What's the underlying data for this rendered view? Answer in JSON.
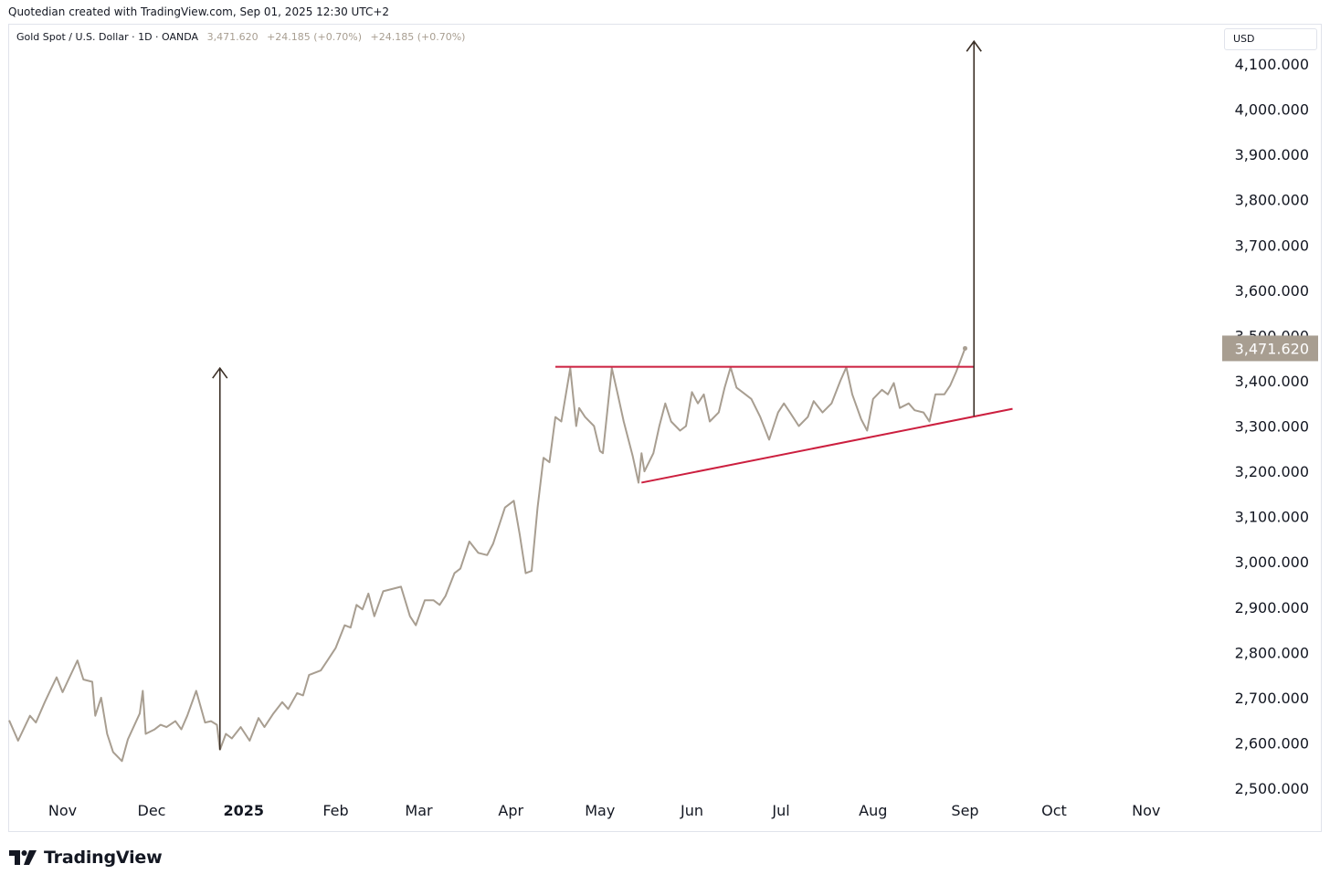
{
  "header": {
    "caption": "Quotedian created with TradingView.com, Sep 01, 2025 12:30 UTC+2"
  },
  "legend": {
    "symbol": "Gold Spot / U.S. Dollar · 1D · OANDA",
    "last": "3,471.620",
    "change": "+24.185 (+0.70%)",
    "change_repeat": "+24.185 (+0.70%)"
  },
  "price_axis": {
    "currency": "USD"
  },
  "footer": {
    "brand": "TradingView"
  },
  "colors": {
    "line": "#a89e91",
    "pattern": "#cc1f3f",
    "arrow": "#3b2f26",
    "badge": "#a89e91"
  },
  "chart_data": {
    "type": "line",
    "title": "Gold Spot / U.S. Dollar · 1D · OANDA",
    "ylabel": "USD",
    "ylim": [
      2500,
      4150
    ],
    "y_ticks": [
      2500,
      2600,
      2700,
      2800,
      2900,
      3000,
      3100,
      3200,
      3300,
      3400,
      3500,
      3600,
      3700,
      3800,
      3900,
      4000,
      4100
    ],
    "y_tick_labels": [
      "2,500.000",
      "2,600.000",
      "2,700.000",
      "2,800.000",
      "2,900.000",
      "3,000.000",
      "3,100.000",
      "3,200.000",
      "3,300.000",
      "3,400.000",
      "3,500.000",
      "3,600.000",
      "3,700.000",
      "3,800.000",
      "3,900.000",
      "4,000.000",
      "4,100.000"
    ],
    "x_range": [
      "2024-10-14",
      "2025-11-26"
    ],
    "x_ticks": [
      {
        "date": "2024-11-01",
        "label": "Nov"
      },
      {
        "date": "2024-12-01",
        "label": "Dec"
      },
      {
        "date": "2025-01-01",
        "label": "2025"
      },
      {
        "date": "2025-02-01",
        "label": "Feb"
      },
      {
        "date": "2025-03-01",
        "label": "Mar"
      },
      {
        "date": "2025-04-01",
        "label": "Apr"
      },
      {
        "date": "2025-05-01",
        "label": "May"
      },
      {
        "date": "2025-06-01",
        "label": "Jun"
      },
      {
        "date": "2025-07-01",
        "label": "Jul"
      },
      {
        "date": "2025-08-01",
        "label": "Aug"
      },
      {
        "date": "2025-09-01",
        "label": "Sep"
      },
      {
        "date": "2025-10-01",
        "label": "Oct"
      },
      {
        "date": "2025-11-01",
        "label": "Nov"
      }
    ],
    "last_price": 3471.62,
    "last_price_label": "3,471.620",
    "series": [
      {
        "name": "Gold Spot / U.S. Dollar",
        "points": [
          [
            "2024-10-14",
            2650
          ],
          [
            "2024-10-17",
            2605
          ],
          [
            "2024-10-21",
            2660
          ],
          [
            "2024-10-23",
            2645
          ],
          [
            "2024-10-26",
            2690
          ],
          [
            "2024-10-28",
            2718
          ],
          [
            "2024-10-30",
            2745
          ],
          [
            "2024-11-01",
            2712
          ],
          [
            "2024-11-03",
            2740
          ],
          [
            "2024-11-06",
            2782
          ],
          [
            "2024-11-08",
            2740
          ],
          [
            "2024-11-11",
            2735
          ],
          [
            "2024-11-12",
            2660
          ],
          [
            "2024-11-14",
            2700
          ],
          [
            "2024-11-16",
            2620
          ],
          [
            "2024-11-18",
            2580
          ],
          [
            "2024-11-21",
            2560
          ],
          [
            "2024-11-23",
            2608
          ],
          [
            "2024-11-27",
            2665
          ],
          [
            "2024-11-28",
            2715
          ],
          [
            "2024-11-29",
            2620
          ],
          [
            "2024-12-02",
            2630
          ],
          [
            "2024-12-04",
            2640
          ],
          [
            "2024-12-06",
            2635
          ],
          [
            "2024-12-09",
            2648
          ],
          [
            "2024-12-11",
            2630
          ],
          [
            "2024-12-13",
            2660
          ],
          [
            "2024-12-16",
            2715
          ],
          [
            "2024-12-19",
            2645
          ],
          [
            "2024-12-21",
            2648
          ],
          [
            "2024-12-23",
            2640
          ],
          [
            "2024-12-24",
            2585
          ],
          [
            "2024-12-26",
            2620
          ],
          [
            "2024-12-28",
            2610
          ],
          [
            "2024-12-31",
            2635
          ],
          [
            "2025-01-03",
            2605
          ],
          [
            "2025-01-06",
            2655
          ],
          [
            "2025-01-08",
            2635
          ],
          [
            "2025-01-11",
            2665
          ],
          [
            "2025-01-14",
            2690
          ],
          [
            "2025-01-16",
            2675
          ],
          [
            "2025-01-19",
            2710
          ],
          [
            "2025-01-21",
            2705
          ],
          [
            "2025-01-23",
            2750
          ],
          [
            "2025-01-27",
            2760
          ],
          [
            "2025-01-29",
            2780
          ],
          [
            "2025-02-01",
            2810
          ],
          [
            "2025-02-04",
            2860
          ],
          [
            "2025-02-06",
            2855
          ],
          [
            "2025-02-08",
            2905
          ],
          [
            "2025-02-10",
            2895
          ],
          [
            "2025-02-12",
            2930
          ],
          [
            "2025-02-14",
            2880
          ],
          [
            "2025-02-17",
            2935
          ],
          [
            "2025-02-20",
            2940
          ],
          [
            "2025-02-23",
            2945
          ],
          [
            "2025-02-26",
            2880
          ],
          [
            "2025-02-28",
            2860
          ],
          [
            "2025-03-03",
            2915
          ],
          [
            "2025-03-06",
            2915
          ],
          [
            "2025-03-08",
            2905
          ],
          [
            "2025-03-10",
            2925
          ],
          [
            "2025-03-13",
            2975
          ],
          [
            "2025-03-15",
            2985
          ],
          [
            "2025-03-18",
            3045
          ],
          [
            "2025-03-21",
            3020
          ],
          [
            "2025-03-24",
            3015
          ],
          [
            "2025-03-26",
            3040
          ],
          [
            "2025-03-28",
            3080
          ],
          [
            "2025-03-30",
            3120
          ],
          [
            "2025-04-02",
            3135
          ],
          [
            "2025-04-04",
            3060
          ],
          [
            "2025-04-06",
            2975
          ],
          [
            "2025-04-08",
            2980
          ],
          [
            "2025-04-10",
            3120
          ],
          [
            "2025-04-12",
            3230
          ],
          [
            "2025-04-14",
            3220
          ],
          [
            "2025-04-16",
            3320
          ],
          [
            "2025-04-18",
            3310
          ],
          [
            "2025-04-21",
            3428
          ],
          [
            "2025-04-23",
            3300
          ],
          [
            "2025-04-24",
            3340
          ],
          [
            "2025-04-26",
            3320
          ],
          [
            "2025-04-29",
            3300
          ],
          [
            "2025-05-01",
            3245
          ],
          [
            "2025-05-02",
            3240
          ],
          [
            "2025-05-05",
            3428
          ],
          [
            "2025-05-07",
            3370
          ],
          [
            "2025-05-09",
            3310
          ],
          [
            "2025-05-12",
            3235
          ],
          [
            "2025-05-14",
            3175
          ],
          [
            "2025-05-15",
            3240
          ],
          [
            "2025-05-16",
            3200
          ],
          [
            "2025-05-19",
            3240
          ],
          [
            "2025-05-21",
            3300
          ],
          [
            "2025-05-23",
            3350
          ],
          [
            "2025-05-25",
            3310
          ],
          [
            "2025-05-28",
            3290
          ],
          [
            "2025-05-30",
            3300
          ],
          [
            "2025-06-01",
            3375
          ],
          [
            "2025-06-03",
            3350
          ],
          [
            "2025-06-05",
            3370
          ],
          [
            "2025-06-07",
            3310
          ],
          [
            "2025-06-10",
            3330
          ],
          [
            "2025-06-12",
            3385
          ],
          [
            "2025-06-14",
            3430
          ],
          [
            "2025-06-16",
            3385
          ],
          [
            "2025-06-19",
            3370
          ],
          [
            "2025-06-21",
            3360
          ],
          [
            "2025-06-24",
            3320
          ],
          [
            "2025-06-27",
            3270
          ],
          [
            "2025-06-30",
            3330
          ],
          [
            "2025-07-02",
            3350
          ],
          [
            "2025-07-04",
            3330
          ],
          [
            "2025-07-07",
            3300
          ],
          [
            "2025-07-10",
            3320
          ],
          [
            "2025-07-12",
            3355
          ],
          [
            "2025-07-15",
            3330
          ],
          [
            "2025-07-18",
            3350
          ],
          [
            "2025-07-21",
            3400
          ],
          [
            "2025-07-23",
            3430
          ],
          [
            "2025-07-25",
            3370
          ],
          [
            "2025-07-28",
            3315
          ],
          [
            "2025-07-30",
            3290
          ],
          [
            "2025-08-01",
            3360
          ],
          [
            "2025-08-04",
            3380
          ],
          [
            "2025-08-06",
            3370
          ],
          [
            "2025-08-08",
            3395
          ],
          [
            "2025-08-10",
            3340
          ],
          [
            "2025-08-13",
            3350
          ],
          [
            "2025-08-15",
            3335
          ],
          [
            "2025-08-18",
            3330
          ],
          [
            "2025-08-20",
            3310
          ],
          [
            "2025-08-22",
            3370
          ],
          [
            "2025-08-25",
            3370
          ],
          [
            "2025-08-27",
            3390
          ],
          [
            "2025-08-29",
            3420
          ],
          [
            "2025-09-01",
            3471.62
          ]
        ]
      }
    ],
    "annotations": {
      "resistance_line": {
        "price": 3431,
        "from": "2025-04-16",
        "to": "2025-09-04"
      },
      "support_line": {
        "from": [
          "2025-05-15",
          3175
        ],
        "to": [
          "2025-09-17",
          3338
        ]
      },
      "arrow_left": {
        "date": "2024-12-24",
        "from": 2585,
        "to": 3428
      },
      "arrow_right": {
        "date": "2025-09-04",
        "from": 3322,
        "to": 4150
      }
    }
  }
}
